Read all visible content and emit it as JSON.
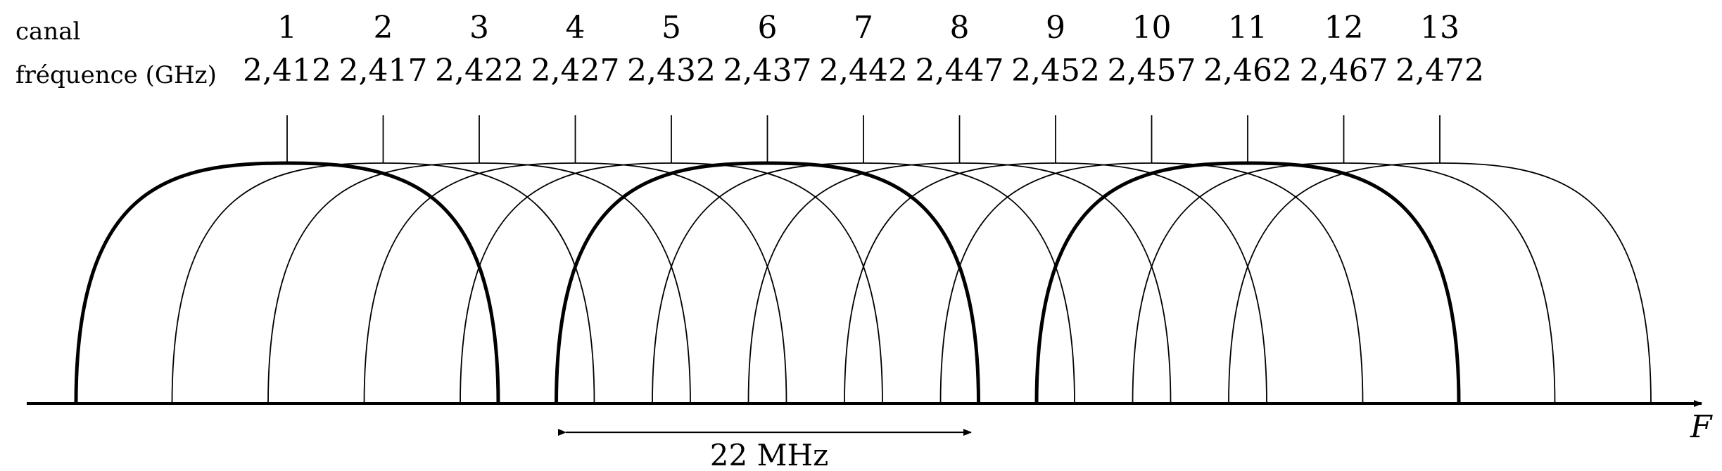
{
  "labels": {
    "channel_row": "canal",
    "frequency_row": "fréquence (GHz)",
    "bandwidth": "22 MHz",
    "axis": "F"
  },
  "channels": [
    {
      "number": "1",
      "frequency": "2,412",
      "highlighted": true
    },
    {
      "number": "2",
      "frequency": "2,417",
      "highlighted": false
    },
    {
      "number": "3",
      "frequency": "2,422",
      "highlighted": false
    },
    {
      "number": "4",
      "frequency": "2,427",
      "highlighted": false
    },
    {
      "number": "5",
      "frequency": "2,432",
      "highlighted": false
    },
    {
      "number": "6",
      "frequency": "2,437",
      "highlighted": true
    },
    {
      "number": "7",
      "frequency": "2,442",
      "highlighted": false
    },
    {
      "number": "8",
      "frequency": "2,447",
      "highlighted": false
    },
    {
      "number": "9",
      "frequency": "2,452",
      "highlighted": false
    },
    {
      "number": "10",
      "frequency": "2,457",
      "highlighted": false
    },
    {
      "number": "11",
      "frequency": "2,462",
      "highlighted": true
    },
    {
      "number": "12",
      "frequency": "2,467",
      "highlighted": false
    },
    {
      "number": "13",
      "frequency": "2,472",
      "highlighted": false
    }
  ],
  "colors": {
    "ink": "#000000",
    "background": "#ffffff"
  }
}
